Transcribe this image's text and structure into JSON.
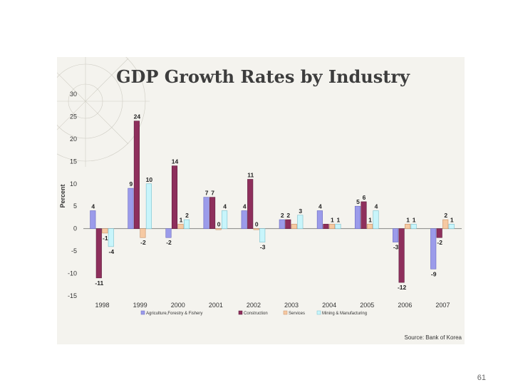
{
  "page_number": "61",
  "source": "Source: Bank of Korea",
  "colors": {
    "background": "#f4f3ee",
    "series": [
      "#9b9bea",
      "#8e2f5c",
      "#f6c9a2",
      "#c8f5fb"
    ],
    "series_stroke": [
      "#6a6ac0",
      "#5e1c3c",
      "#c79168",
      "#7bbfcc"
    ]
  },
  "chart_data": {
    "type": "bar",
    "title": "GDP Growth Rates by Industry",
    "ylabel": "Percent",
    "xlabel": "",
    "ylim": [
      -15,
      30
    ],
    "yticks": [
      "30",
      "25",
      "20",
      "15",
      "10",
      "5",
      "0",
      "-5",
      "-10",
      "-15"
    ],
    "ytick_values": [
      30,
      25,
      20,
      15,
      10,
      5,
      0,
      -5,
      -10,
      -15
    ],
    "categories": [
      "1998",
      "1999",
      "2000",
      "2001",
      "2002",
      "2003",
      "2004",
      "2005",
      "2006",
      "2007"
    ],
    "series": [
      {
        "name": "Agriculture,Forestry & Fishery",
        "values": [
          4,
          9,
          -2,
          7,
          4,
          2,
          4,
          5,
          -3,
          -9
        ],
        "labels": [
          "4",
          "9",
          "-2",
          "7",
          "4",
          "2",
          "4",
          "5",
          "-3",
          "-9"
        ]
      },
      {
        "name": "Construction",
        "values": [
          -11,
          24,
          14,
          7,
          11,
          2,
          1,
          6,
          -12,
          -2
        ],
        "labels": [
          "-11",
          "24",
          "14",
          "7",
          "11",
          "2",
          "",
          "6",
          "-12",
          "-2"
        ]
      },
      {
        "name": "Services",
        "values": [
          -1,
          -2,
          1,
          0,
          0,
          1,
          1,
          1,
          1,
          2
        ],
        "labels": [
          "-1",
          "-2",
          "1",
          "0",
          "0",
          "",
          "1",
          "1",
          "1",
          "2"
        ]
      },
      {
        "name": "Mining & Manufacturing",
        "values": [
          -4,
          10,
          2,
          4,
          -3,
          3,
          1,
          4,
          1,
          1
        ],
        "labels": [
          "-4",
          "10",
          "2",
          "4",
          "-3",
          "3",
          "1",
          "4",
          "1",
          "1"
        ]
      }
    ],
    "legend_position": "bottom"
  }
}
